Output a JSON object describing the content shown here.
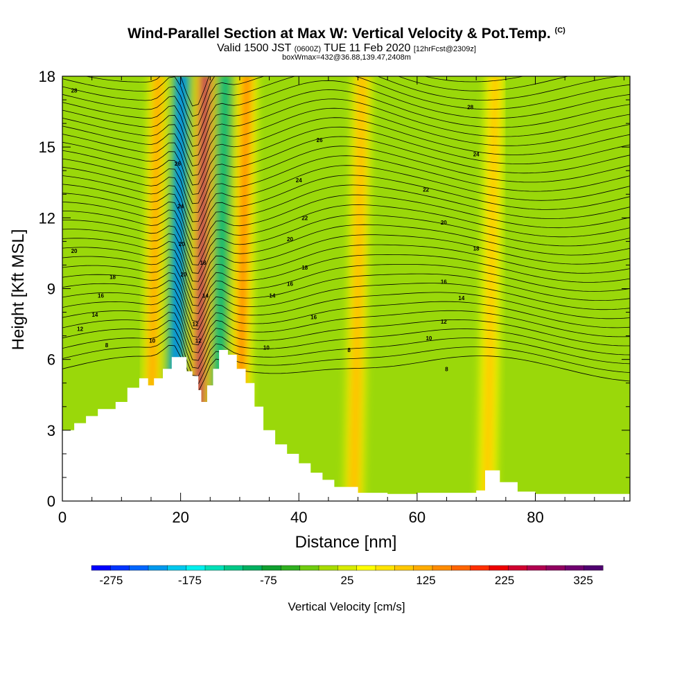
{
  "header": {
    "title": "Wind-Parallel Section at Max W: Vertical Velocity & Pot.Temp.",
    "title_mark": "(C)",
    "subtitle_main": "Valid 1500 JST",
    "subtitle_utc": "(0600Z)",
    "subtitle_date": "TUE 11 Feb 2020",
    "subtitle_fcst": "[12hrFcst@2309z]",
    "info": "boxWmax=432@36.88,139.47,2408m"
  },
  "chart_data": {
    "type": "heatmap",
    "xlabel": "Distance [nm]",
    "ylabel": "Height [Kft MSL]",
    "xlim": [
      0,
      96
    ],
    "ylim": [
      0,
      18
    ],
    "x_ticks": [
      0,
      20,
      40,
      60,
      80
    ],
    "y_ticks": [
      0,
      3,
      6,
      9,
      12,
      15,
      18
    ],
    "colorbar": {
      "label": "Vertical Velocity [cm/s]",
      "tick_labels": [
        -275,
        -175,
        -75,
        25,
        125,
        225,
        325
      ],
      "min": -300,
      "max": 350,
      "colors": [
        "#0000ff",
        "#0035ff",
        "#0066ff",
        "#0099ee",
        "#00c8ee",
        "#00f0ee",
        "#00e0b8",
        "#00c887",
        "#00b060",
        "#10a030",
        "#30b020",
        "#70cc10",
        "#a8dc00",
        "#d8ec00",
        "#ffff00",
        "#ffe400",
        "#ffc800",
        "#ffac00",
        "#ff8c00",
        "#ff6400",
        "#ff3000",
        "#ee0000",
        "#d00030",
        "#b00050",
        "#900060",
        "#700070",
        "#500070"
      ]
    },
    "velocity_bands": [
      {
        "x": 15.5,
        "value": 140
      },
      {
        "x": 19.5,
        "value": -230
      },
      {
        "x": 23.5,
        "value": 290
      },
      {
        "x": 26.8,
        "value": -110
      },
      {
        "x": 30.5,
        "value": 180
      },
      {
        "x": 50,
        "value": 120
      },
      {
        "x": 72.5,
        "value": 110
      }
    ],
    "terrain_kft": [
      [
        0,
        3.0
      ],
      [
        2,
        3.3
      ],
      [
        4,
        3.6
      ],
      [
        6,
        3.9
      ],
      [
        9,
        4.2
      ],
      [
        11,
        4.8
      ],
      [
        13,
        5.2
      ],
      [
        14.5,
        4.9
      ],
      [
        15.5,
        5.2
      ],
      [
        17,
        5.6
      ],
      [
        18.5,
        6.1
      ],
      [
        20.5,
        6.1
      ],
      [
        21,
        5.5
      ],
      [
        22,
        5.3
      ],
      [
        23,
        4.7
      ],
      [
        23.5,
        4.2
      ],
      [
        24.5,
        4.9
      ],
      [
        25.5,
        5.6
      ],
      [
        26.5,
        6.4
      ],
      [
        28,
        6.2
      ],
      [
        29.5,
        5.6
      ],
      [
        31,
        5.0
      ],
      [
        32.5,
        4.0
      ],
      [
        34,
        3.0
      ],
      [
        36,
        2.4
      ],
      [
        38,
        2.0
      ],
      [
        40,
        1.6
      ],
      [
        42,
        1.2
      ],
      [
        44,
        0.9
      ],
      [
        46,
        0.6
      ],
      [
        50,
        0.35
      ],
      [
        55,
        0.3
      ],
      [
        60,
        0.35
      ],
      [
        70,
        0.45
      ],
      [
        71.5,
        1.3
      ],
      [
        73,
        1.3
      ],
      [
        74,
        0.8
      ],
      [
        77,
        0.4
      ],
      [
        80,
        0.3
      ],
      [
        96,
        0.3
      ]
    ],
    "theta_contour_labels": [
      {
        "text": "28",
        "x": 2,
        "y": 17.4
      },
      {
        "text": "20",
        "x": 2,
        "y": 10.6
      },
      {
        "text": "18",
        "x": 8.5,
        "y": 9.5
      },
      {
        "text": "16",
        "x": 6.5,
        "y": 8.7
      },
      {
        "text": "14",
        "x": 5.5,
        "y": 7.9
      },
      {
        "text": "12",
        "x": 3,
        "y": 7.3
      },
      {
        "text": "8",
        "x": 7.5,
        "y": 6.6
      },
      {
        "text": "10",
        "x": 15.2,
        "y": 6.8
      },
      {
        "text": "26",
        "x": 19.5,
        "y": 14.3
      },
      {
        "text": "24",
        "x": 20,
        "y": 12.5
      },
      {
        "text": "20",
        "x": 20.2,
        "y": 10.9
      },
      {
        "text": "20",
        "x": 20.5,
        "y": 9.6
      },
      {
        "text": "18",
        "x": 23.8,
        "y": 10.1
      },
      {
        "text": "14",
        "x": 24.2,
        "y": 8.7
      },
      {
        "text": "12",
        "x": 22.5,
        "y": 7.5
      },
      {
        "text": "12",
        "x": 23,
        "y": 6.8
      },
      {
        "text": "26",
        "x": 43.5,
        "y": 15.3
      },
      {
        "text": "24",
        "x": 40,
        "y": 13.6
      },
      {
        "text": "22",
        "x": 41,
        "y": 12.0
      },
      {
        "text": "20",
        "x": 38.5,
        "y": 11.1
      },
      {
        "text": "18",
        "x": 41,
        "y": 9.9
      },
      {
        "text": "16",
        "x": 38.5,
        "y": 9.2
      },
      {
        "text": "14",
        "x": 35.5,
        "y": 8.7
      },
      {
        "text": "16",
        "x": 42.5,
        "y": 7.8
      },
      {
        "text": "10",
        "x": 34.5,
        "y": 6.5
      },
      {
        "text": "8",
        "x": 48.5,
        "y": 6.4
      },
      {
        "text": "28",
        "x": 69,
        "y": 16.7
      },
      {
        "text": "24",
        "x": 70,
        "y": 14.7
      },
      {
        "text": "22",
        "x": 61.5,
        "y": 13.2
      },
      {
        "text": "20",
        "x": 64.5,
        "y": 11.8
      },
      {
        "text": "18",
        "x": 70,
        "y": 10.7
      },
      {
        "text": "16",
        "x": 64.5,
        "y": 9.3
      },
      {
        "text": "14",
        "x": 67.5,
        "y": 8.6
      },
      {
        "text": "12",
        "x": 64.5,
        "y": 7.6
      },
      {
        "text": "10",
        "x": 62,
        "y": 6.9
      },
      {
        "text": "8",
        "x": 65,
        "y": 5.6
      }
    ]
  }
}
